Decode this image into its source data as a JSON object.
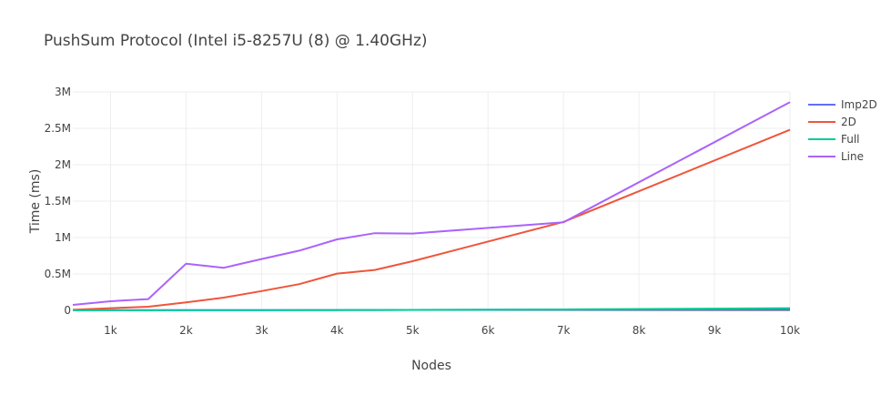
{
  "chart_data": {
    "type": "line",
    "title": "PushSum Protocol (Intel i5-8257U (8) @ 1.40GHz)",
    "xlabel": "Nodes",
    "ylabel": "Time (ms)",
    "xlim": [
      500,
      10000
    ],
    "ylim": [
      0,
      3000000
    ],
    "x_ticks": [
      1000,
      2000,
      3000,
      4000,
      5000,
      6000,
      7000,
      8000,
      9000,
      10000
    ],
    "x_tick_labels": [
      "1k",
      "2k",
      "3k",
      "4k",
      "5k",
      "6k",
      "7k",
      "8k",
      "9k",
      "10k"
    ],
    "y_ticks": [
      0,
      500000,
      1000000,
      1500000,
      2000000,
      2500000,
      3000000
    ],
    "y_tick_labels": [
      "0",
      "0.5M",
      "1M",
      "1.5M",
      "2M",
      "2.5M",
      "3M"
    ],
    "grid": true,
    "legend_position": "top-right",
    "series": [
      {
        "name": "Imp2D",
        "color": "#636efa",
        "points": [
          [
            500,
            1500
          ],
          [
            1000,
            2000
          ],
          [
            1500,
            2500
          ],
          [
            2000,
            3000
          ],
          [
            2500,
            3500
          ],
          [
            3000,
            4000
          ],
          [
            3500,
            4500
          ],
          [
            4000,
            5000
          ],
          [
            4500,
            5500
          ],
          [
            5000,
            6000
          ],
          [
            7000,
            9000
          ],
          [
            10000,
            15000
          ]
        ]
      },
      {
        "name": "2D",
        "color": "#ef553b",
        "points": [
          [
            500,
            8000
          ],
          [
            1000,
            30000
          ],
          [
            1500,
            50000
          ],
          [
            2000,
            110000
          ],
          [
            2500,
            175000
          ],
          [
            3000,
            265000
          ],
          [
            3500,
            360000
          ],
          [
            4000,
            505000
          ],
          [
            4500,
            555000
          ],
          [
            5000,
            675000
          ],
          [
            7000,
            1215000
          ],
          [
            10000,
            2480000
          ]
        ]
      },
      {
        "name": "Full",
        "color": "#00cc96",
        "points": [
          [
            500,
            500
          ],
          [
            1000,
            1000
          ],
          [
            1500,
            1500
          ],
          [
            2000,
            2000
          ],
          [
            2500,
            2500
          ],
          [
            3000,
            3000
          ],
          [
            3500,
            3500
          ],
          [
            4000,
            4000
          ],
          [
            4500,
            5000
          ],
          [
            5000,
            6000
          ],
          [
            7000,
            12000
          ],
          [
            10000,
            30000
          ]
        ]
      },
      {
        "name": "Line",
        "color": "#ab63fa",
        "points": [
          [
            500,
            75000
          ],
          [
            1000,
            125000
          ],
          [
            1500,
            155000
          ],
          [
            2000,
            640000
          ],
          [
            2500,
            585000
          ],
          [
            3000,
            705000
          ],
          [
            3500,
            820000
          ],
          [
            4000,
            975000
          ],
          [
            4500,
            1060000
          ],
          [
            5000,
            1055000
          ],
          [
            7000,
            1210000
          ],
          [
            10000,
            2860000
          ]
        ]
      }
    ]
  }
}
